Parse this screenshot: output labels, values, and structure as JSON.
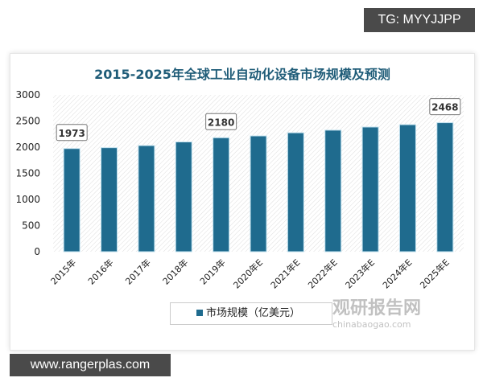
{
  "watermark_top": "TG: MYYJJPP",
  "watermark_bottom": "www.rangerplas.com",
  "watermark_logo": {
    "name": "观研报告网",
    "sub": "chinabaogao.com"
  },
  "chart_data": {
    "type": "bar",
    "title": "2015-2025年全球工业自动化设备市场规模及预测",
    "categories": [
      "2015年",
      "2016年",
      "2017年",
      "2018年",
      "2019年",
      "2020年E",
      "2021年E",
      "2022年E",
      "2023年E",
      "2024年E",
      "2025年E"
    ],
    "series": [
      {
        "name": "市场规模（亿美元）",
        "values": [
          1973,
          1990,
          2030,
          2100,
          2180,
          2215,
          2275,
          2325,
          2385,
          2430,
          2468
        ],
        "color": "#1f6b8e"
      }
    ],
    "data_labels": [
      {
        "index": 0,
        "text": "1973"
      },
      {
        "index": 4,
        "text": "2180"
      },
      {
        "index": 10,
        "text": "2468"
      }
    ],
    "ylim": [
      0,
      3000
    ],
    "yticks": [
      "0",
      "500",
      "1000",
      "1500",
      "2000",
      "2500",
      "3000"
    ],
    "legend": "bottom",
    "grid": false
  }
}
